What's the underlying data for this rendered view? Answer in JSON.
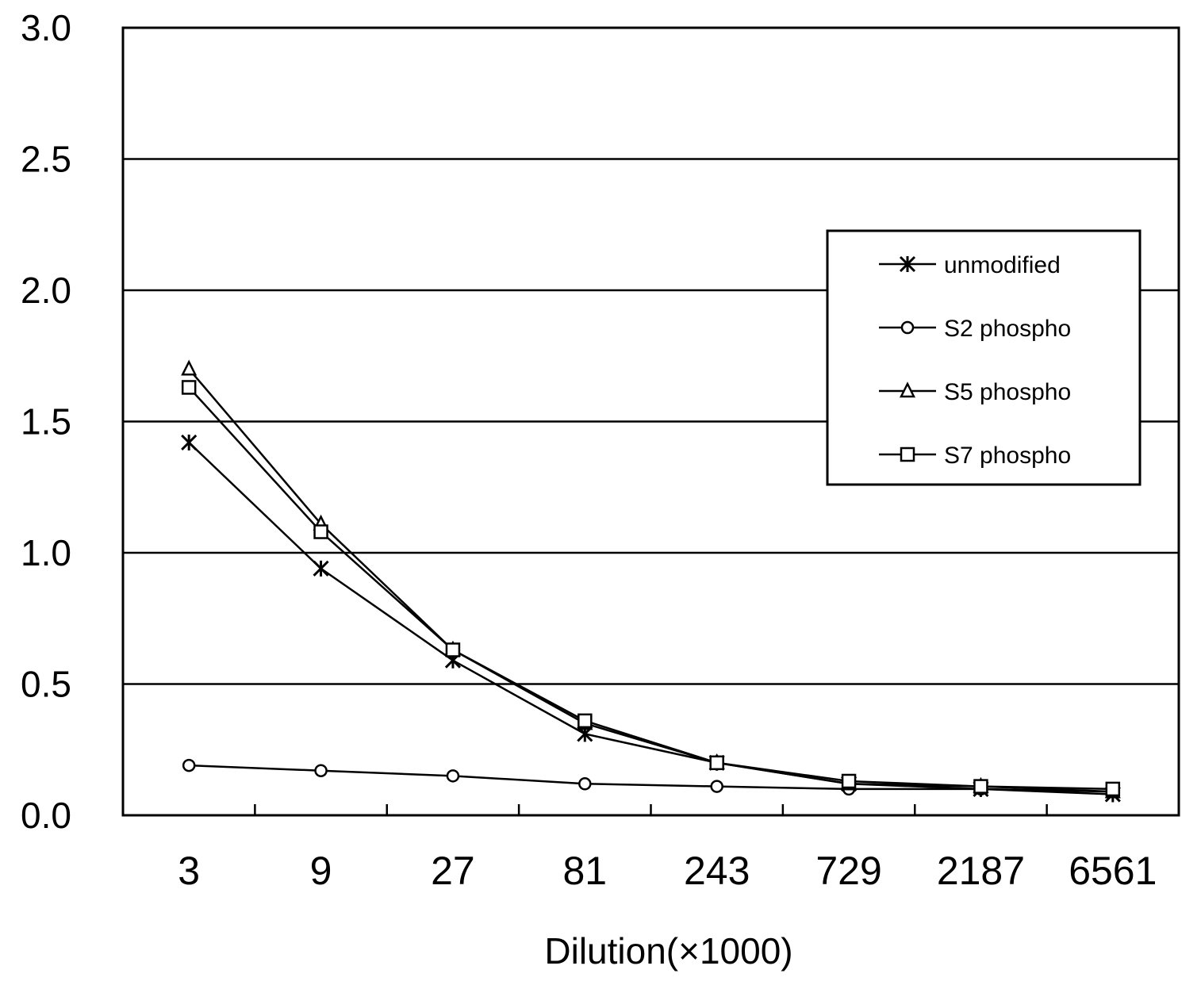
{
  "chart_data": {
    "type": "line",
    "title": "",
    "xlabel": "Dilution(×1000)",
    "ylabel": "",
    "categories": [
      "3",
      "9",
      "27",
      "81",
      "243",
      "729",
      "2187",
      "6561"
    ],
    "ylim": [
      0,
      3.0
    ],
    "y_ticks": [
      "0.0",
      "0.5",
      "1.0",
      "1.5",
      "2.0",
      "2.5",
      "3.0"
    ],
    "grid": "horizontal",
    "legend_position": "right",
    "series": [
      {
        "name": "unmodified",
        "marker": "asterisk",
        "values": [
          1.42,
          0.94,
          0.59,
          0.31,
          0.2,
          0.12,
          0.1,
          0.08
        ]
      },
      {
        "name": "S2 phospho",
        "marker": "circle",
        "values": [
          0.19,
          0.17,
          0.15,
          0.12,
          0.11,
          0.1,
          0.1,
          0.09
        ]
      },
      {
        "name": "S5 phospho",
        "marker": "triangle",
        "values": [
          1.7,
          1.11,
          0.63,
          0.35,
          0.2,
          0.12,
          0.11,
          0.09
        ]
      },
      {
        "name": "S7 phospho",
        "marker": "square",
        "values": [
          1.63,
          1.08,
          0.63,
          0.36,
          0.2,
          0.13,
          0.11,
          0.1
        ]
      }
    ]
  }
}
